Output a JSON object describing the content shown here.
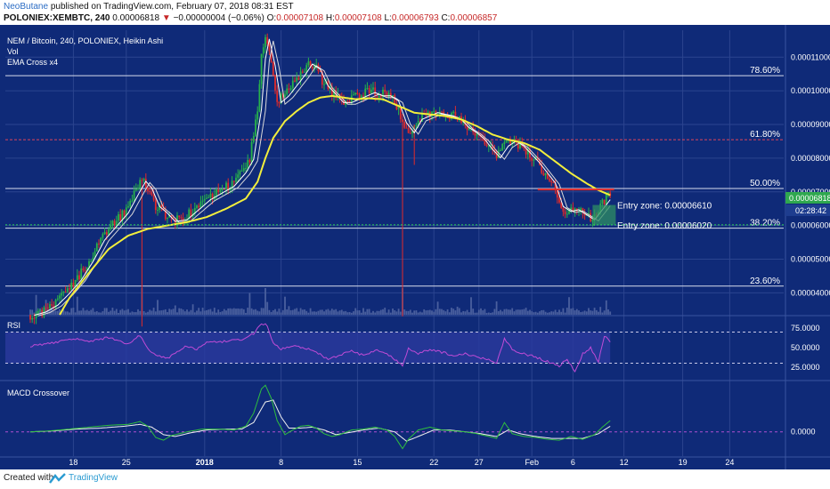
{
  "header": {
    "author": "NeoButane",
    "published": " published on TradingView.com, February 07, 2018 08:31 EST",
    "symbol": "POLONIEX:XEMBTC, 240",
    "price": "0.00006818",
    "change_arrow": "▼",
    "change": "−0.00000004 (−0.06%)",
    "ohlc": [
      {
        "label": "O:",
        "value": "0.00007108"
      },
      {
        "label": "H:",
        "value": "0.00007108"
      },
      {
        "label": "L:",
        "value": "0.00006793"
      },
      {
        "label": "C:",
        "value": "0.00006857"
      }
    ]
  },
  "legend": {
    "title": "NEM / Bitcoin, 240, POLONIEX, Heikin Ashi",
    "vol": "Vol",
    "ema": "EMA Cross x4"
  },
  "colors": {
    "background": "#0f2a78",
    "grid": "#2b448f",
    "up": "#27b24a",
    "down": "#e02a2a",
    "ema_slow": "#f2ee3c",
    "ema_fast": "#ffffff",
    "fib_line": "#d7dcec",
    "fib_618": "#e0455a",
    "entry_green": "#2cd158",
    "rsi_line": "#c04bd6",
    "macd_line": "#2fbf3e",
    "signal_line": "#f0f0f0"
  },
  "chart_data": [
    {
      "type": "candlestick",
      "title": "NEM / Bitcoin, 240, POLONIEX, Heikin Ashi",
      "y_axis_ticks": [
        "0.00011000",
        "0.00010000",
        "0.00009000",
        "0.00008000",
        "0.00007000",
        "0.00006000",
        "0.00005000",
        "0.00004000"
      ],
      "ylim": [
        3.35e-05,
        0.000118
      ],
      "x_ticks": [
        "18",
        "25",
        "2018",
        "8",
        "15",
        "22",
        "27",
        "Feb",
        "6",
        "12",
        "19",
        "24"
      ],
      "price_label": "0.00006818",
      "countdown_label": "02:28:42",
      "closes_anchor": [
        [
          0,
          3.35e-05
        ],
        [
          6,
          3.45e-05
        ],
        [
          12,
          3.65e-05
        ],
        [
          18,
          4e-05
        ],
        [
          24,
          4.4e-05
        ],
        [
          30,
          4.95e-05
        ],
        [
          36,
          5.6e-05
        ],
        [
          42,
          6e-05
        ],
        [
          48,
          6.4e-05
        ],
        [
          54,
          7.05e-05
        ],
        [
          57,
          7.35e-05
        ],
        [
          60,
          7.15e-05
        ],
        [
          64,
          6.6e-05
        ],
        [
          68,
          6.4e-05
        ],
        [
          72,
          6.15e-05
        ],
        [
          78,
          6.2e-05
        ],
        [
          84,
          6.5e-05
        ],
        [
          90,
          6.8e-05
        ],
        [
          96,
          7e-05
        ],
        [
          102,
          7.2e-05
        ],
        [
          108,
          7.6e-05
        ],
        [
          112,
          8e-05
        ],
        [
          116,
          9.5e-05
        ],
        [
          118,
          0.00011
        ],
        [
          120,
          0.000116
        ],
        [
          123,
          0.000108
        ],
        [
          126,
          9.7e-05
        ],
        [
          130,
          9.9e-05
        ],
        [
          134,
          0.000102
        ],
        [
          138,
          0.000105
        ],
        [
          142,
          0.0001085
        ],
        [
          146,
          0.000107
        ],
        [
          150,
          0.000102
        ],
        [
          154,
          9.95e-05
        ],
        [
          158,
          9.7e-05
        ],
        [
          162,
          9.7e-05
        ],
        [
          166,
          9.8e-05
        ],
        [
          170,
          9.9e-05
        ],
        [
          174,
          0.0001
        ],
        [
          178,
          9.9e-05
        ],
        [
          182,
          9.9e-05
        ],
        [
          186,
          9.75e-05
        ],
        [
          190,
          9.1e-05
        ],
        [
          194,
          8.8e-05
        ],
        [
          198,
          9.2e-05
        ],
        [
          202,
          9.3e-05
        ],
        [
          206,
          9.4e-05
        ],
        [
          210,
          9.35e-05
        ],
        [
          214,
          9.3e-05
        ],
        [
          218,
          9.2e-05
        ],
        [
          222,
          8.95e-05
        ],
        [
          226,
          8.8e-05
        ],
        [
          230,
          8.6e-05
        ],
        [
          234,
          8.3e-05
        ],
        [
          238,
          8.05e-05
        ],
        [
          242,
          8.4e-05
        ],
        [
          246,
          8.55e-05
        ],
        [
          250,
          8.4e-05
        ],
        [
          254,
          8.15e-05
        ],
        [
          258,
          7.9e-05
        ],
        [
          262,
          7.6e-05
        ],
        [
          266,
          7.3e-05
        ],
        [
          270,
          6.6e-05
        ],
        [
          274,
          6.45e-05
        ],
        [
          278,
          6.5e-05
        ],
        [
          282,
          6.35e-05
        ],
        [
          286,
          6.2e-05
        ],
        [
          290,
          6.5e-05
        ],
        [
          294,
          6.8e-05
        ],
        [
          296,
          6.86e-05
        ]
      ],
      "ema_slow_anchor": [
        [
          15,
          3.35e-05
        ],
        [
          20,
          3.85e-05
        ],
        [
          30,
          4.6e-05
        ],
        [
          40,
          5.3e-05
        ],
        [
          50,
          5.7e-05
        ],
        [
          60,
          5.9e-05
        ],
        [
          70,
          6e-05
        ],
        [
          80,
          6.1e-05
        ],
        [
          90,
          6.25e-05
        ],
        [
          100,
          6.5e-05
        ],
        [
          110,
          6.8e-05
        ],
        [
          116,
          7.3e-05
        ],
        [
          120,
          8e-05
        ],
        [
          124,
          8.6e-05
        ],
        [
          130,
          9.1e-05
        ],
        [
          136,
          9.4e-05
        ],
        [
          142,
          9.65e-05
        ],
        [
          148,
          9.8e-05
        ],
        [
          154,
          9.85e-05
        ],
        [
          160,
          9.8e-05
        ],
        [
          166,
          9.75e-05
        ],
        [
          172,
          9.78e-05
        ],
        [
          180,
          9.75e-05
        ],
        [
          188,
          9.55e-05
        ],
        [
          196,
          9.35e-05
        ],
        [
          204,
          9.3e-05
        ],
        [
          212,
          9.25e-05
        ],
        [
          220,
          9.15e-05
        ],
        [
          228,
          8.95e-05
        ],
        [
          236,
          8.7e-05
        ],
        [
          244,
          8.55e-05
        ],
        [
          252,
          8.45e-05
        ],
        [
          260,
          8.25e-05
        ],
        [
          268,
          7.9e-05
        ],
        [
          276,
          7.55e-05
        ],
        [
          284,
          7.25e-05
        ],
        [
          290,
          7.05e-05
        ],
        [
          296,
          6.9e-05
        ]
      ],
      "fibonacci": [
        {
          "label": "78.60%",
          "price": 0.0001045
        },
        {
          "label": "61.80%",
          "price": 8.55e-05
        },
        {
          "label": "50.00%",
          "price": 7.1e-05
        },
        {
          "label": "38.20%",
          "price": 5.92e-05
        },
        {
          "label": "23.60%",
          "price": 4.2e-05
        }
      ],
      "annotations": [
        {
          "label": "Entry zone: 0.00006610",
          "price": 6.61e-05
        },
        {
          "label": "Entry zone: 0.00006020",
          "price": 6.02e-05
        }
      ],
      "resistance_price": 7.07e-05
    },
    {
      "type": "line",
      "title": "RSI",
      "y_axis_ticks": [
        "75.0000",
        "50.0000",
        "25.0000"
      ],
      "levels": [
        70,
        30
      ],
      "ylim": [
        10,
        90
      ],
      "values_anchor": [
        [
          0,
          52
        ],
        [
          10,
          55
        ],
        [
          20,
          62
        ],
        [
          30,
          58
        ],
        [
          40,
          63
        ],
        [
          50,
          55
        ],
        [
          56,
          66
        ],
        [
          60,
          48
        ],
        [
          65,
          40
        ],
        [
          70,
          36
        ],
        [
          75,
          45
        ],
        [
          80,
          52
        ],
        [
          85,
          48
        ],
        [
          90,
          56
        ],
        [
          100,
          58
        ],
        [
          108,
          60
        ],
        [
          114,
          68
        ],
        [
          118,
          82
        ],
        [
          121,
          78
        ],
        [
          124,
          55
        ],
        [
          128,
          48
        ],
        [
          134,
          52
        ],
        [
          140,
          50
        ],
        [
          146,
          44
        ],
        [
          152,
          35
        ],
        [
          158,
          40
        ],
        [
          164,
          46
        ],
        [
          170,
          40
        ],
        [
          176,
          47
        ],
        [
          182,
          42
        ],
        [
          186,
          35
        ],
        [
          190,
          27
        ],
        [
          193,
          50
        ],
        [
          198,
          42
        ],
        [
          204,
          48
        ],
        [
          210,
          44
        ],
        [
          216,
          40
        ],
        [
          222,
          42
        ],
        [
          228,
          38
        ],
        [
          234,
          35
        ],
        [
          238,
          30
        ],
        [
          242,
          62
        ],
        [
          246,
          48
        ],
        [
          252,
          42
        ],
        [
          258,
          38
        ],
        [
          264,
          32
        ],
        [
          270,
          26
        ],
        [
          274,
          36
        ],
        [
          278,
          18
        ],
        [
          282,
          42
        ],
        [
          286,
          50
        ],
        [
          290,
          32
        ],
        [
          293,
          65
        ],
        [
          296,
          58
        ]
      ]
    },
    {
      "type": "line",
      "title": "MACD Crossover",
      "y_axis_ticks": [
        "0.0000"
      ],
      "ylim": [
        -2.6,
        5.4
      ],
      "macd_anchor": [
        [
          0,
          0
        ],
        [
          10,
          0.1
        ],
        [
          20,
          0.3
        ],
        [
          30,
          0.5
        ],
        [
          40,
          0.7
        ],
        [
          50,
          0.8
        ],
        [
          56,
          1.1
        ],
        [
          60,
          0.6
        ],
        [
          64,
          -0.6
        ],
        [
          68,
          -0.9
        ],
        [
          72,
          -0.4
        ],
        [
          80,
          0.0
        ],
        [
          88,
          0.3
        ],
        [
          96,
          0.3
        ],
        [
          104,
          0.2
        ],
        [
          110,
          0.6
        ],
        [
          114,
          2.0
        ],
        [
          118,
          4.6
        ],
        [
          120,
          5.0
        ],
        [
          123,
          3.6
        ],
        [
          126,
          1.2
        ],
        [
          130,
          -0.3
        ],
        [
          134,
          0.2
        ],
        [
          138,
          0.6
        ],
        [
          142,
          0.7
        ],
        [
          146,
          0.4
        ],
        [
          150,
          -0.2
        ],
        [
          154,
          -0.5
        ],
        [
          158,
          -0.3
        ],
        [
          164,
          0.2
        ],
        [
          170,
          0.3
        ],
        [
          176,
          0.5
        ],
        [
          182,
          0.2
        ],
        [
          186,
          -0.5
        ],
        [
          190,
          -1.8
        ],
        [
          193,
          -0.8
        ],
        [
          198,
          0.2
        ],
        [
          204,
          0.5
        ],
        [
          210,
          0.2
        ],
        [
          216,
          0.1
        ],
        [
          222,
          0.0
        ],
        [
          228,
          -0.2
        ],
        [
          234,
          -0.5
        ],
        [
          238,
          -0.7
        ],
        [
          242,
          1.0
        ],
        [
          246,
          -0.2
        ],
        [
          252,
          -0.5
        ],
        [
          258,
          -0.6
        ],
        [
          264,
          -0.8
        ],
        [
          270,
          -0.9
        ],
        [
          276,
          -0.5
        ],
        [
          282,
          -0.8
        ],
        [
          288,
          -0.3
        ],
        [
          292,
          0.5
        ],
        [
          296,
          1.2
        ]
      ],
      "signal_anchor": [
        [
          0,
          0
        ],
        [
          12,
          0.1
        ],
        [
          24,
          0.3
        ],
        [
          36,
          0.4
        ],
        [
          48,
          0.6
        ],
        [
          56,
          0.8
        ],
        [
          62,
          0.5
        ],
        [
          68,
          -0.3
        ],
        [
          74,
          -0.5
        ],
        [
          82,
          -0.1
        ],
        [
          90,
          0.2
        ],
        [
          100,
          0.3
        ],
        [
          108,
          0.3
        ],
        [
          114,
          1.0
        ],
        [
          120,
          3.2
        ],
        [
          124,
          3.4
        ],
        [
          128,
          1.6
        ],
        [
          132,
          0.4
        ],
        [
          138,
          0.4
        ],
        [
          144,
          0.5
        ],
        [
          150,
          0.2
        ],
        [
          156,
          -0.3
        ],
        [
          162,
          -0.1
        ],
        [
          170,
          0.2
        ],
        [
          178,
          0.4
        ],
        [
          186,
          0.0
        ],
        [
          192,
          -1.0
        ],
        [
          198,
          -0.5
        ],
        [
          206,
          0.2
        ],
        [
          214,
          0.2
        ],
        [
          222,
          0.0
        ],
        [
          230,
          -0.2
        ],
        [
          238,
          -0.5
        ],
        [
          244,
          0.2
        ],
        [
          250,
          -0.2
        ],
        [
          258,
          -0.5
        ],
        [
          266,
          -0.7
        ],
        [
          274,
          -0.7
        ],
        [
          282,
          -0.7
        ],
        [
          290,
          -0.2
        ],
        [
          296,
          0.6
        ]
      ]
    }
  ],
  "footer": {
    "created_with": "Created with",
    "brand": "TradingView"
  }
}
